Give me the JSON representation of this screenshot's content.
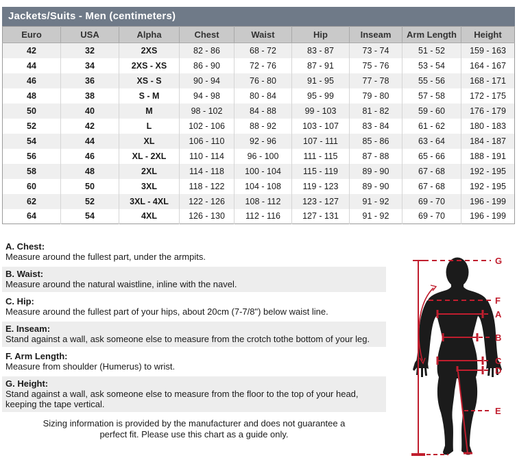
{
  "title": "Jackets/Suits - Men (centimeters)",
  "table": {
    "columns": [
      "Euro",
      "USA",
      "Alpha",
      "Chest",
      "Waist",
      "Hip",
      "Inseam",
      "Arm Length",
      "Height"
    ],
    "rows": [
      [
        "42",
        "32",
        "2XS",
        "82 - 86",
        "68 - 72",
        "83 - 87",
        "73 - 74",
        "51 - 52",
        "159 - 163"
      ],
      [
        "44",
        "34",
        "2XS - XS",
        "86 - 90",
        "72 - 76",
        "87 - 91",
        "75 - 76",
        "53 - 54",
        "164 - 167"
      ],
      [
        "46",
        "36",
        "XS - S",
        "90 - 94",
        "76 - 80",
        "91 - 95",
        "77 - 78",
        "55 - 56",
        "168 - 171"
      ],
      [
        "48",
        "38",
        "S - M",
        "94 - 98",
        "80 - 84",
        "95 - 99",
        "79 - 80",
        "57 - 58",
        "172 - 175"
      ],
      [
        "50",
        "40",
        "M",
        "98 - 102",
        "84 - 88",
        "99 - 103",
        "81 - 82",
        "59 - 60",
        "176 - 179"
      ],
      [
        "52",
        "42",
        "L",
        "102 - 106",
        "88 - 92",
        "103 - 107",
        "83 - 84",
        "61 - 62",
        "180 - 183"
      ],
      [
        "54",
        "44",
        "XL",
        "106 - 110",
        "92 - 96",
        "107 - 111",
        "85 - 86",
        "63 - 64",
        "184 - 187"
      ],
      [
        "56",
        "46",
        "XL - 2XL",
        "110 - 114",
        "96 - 100",
        "111 - 115",
        "87 - 88",
        "65 - 66",
        "188 - 191"
      ],
      [
        "58",
        "48",
        "2XL",
        "114 - 118",
        "100 - 104",
        "115 - 119",
        "89 - 90",
        "67 - 68",
        "192 - 195"
      ],
      [
        "60",
        "50",
        "3XL",
        "118 - 122",
        "104 - 108",
        "119 - 123",
        "89 - 90",
        "67 - 68",
        "192 - 195"
      ],
      [
        "62",
        "52",
        "3XL - 4XL",
        "122 - 126",
        "108 - 112",
        "123 - 127",
        "91 - 92",
        "69 - 70",
        "196 - 199"
      ],
      [
        "64",
        "54",
        "4XL",
        "126 - 130",
        "112 - 116",
        "127 - 131",
        "91 - 92",
        "69 - 70",
        "196 - 199"
      ]
    ]
  },
  "measurements": [
    {
      "label": "A. Chest:",
      "text": "Measure around the fullest part, under the armpits."
    },
    {
      "label": "B. Waist:",
      "text": "Measure around the natural waistline, inline with the navel."
    },
    {
      "label": "C. Hip:",
      "text": "Measure around the fullest part of your hips, about 20cm (7-7/8\") below waist line."
    },
    {
      "label": "E. Inseam:",
      "text": "Stand against a wall, ask someone else to measure from the crotch tothe bottom of your leg."
    },
    {
      "label": "F. Arm Length:",
      "text": "Measure from shoulder (Humerus) to wrist."
    },
    {
      "label": "G. Height:",
      "text": "Stand against a wall, ask someone else to measure from the floor to the top of your head, keeping the tape vertical."
    }
  ],
  "disclaimer": "Sizing information is provided by the manufacturer and does not guarantee a perfect fit. Please use this chart as a guide only.",
  "figure": {
    "labels": [
      "G",
      "F",
      "A",
      "B",
      "C",
      "D",
      "E"
    ]
  },
  "colors": {
    "title_bar": "#6f7a88",
    "header_bg": "#c9c9c9",
    "row_alt": "#efefef",
    "accent_red": "#c01e2e",
    "silhouette": "#1b1b1b"
  }
}
